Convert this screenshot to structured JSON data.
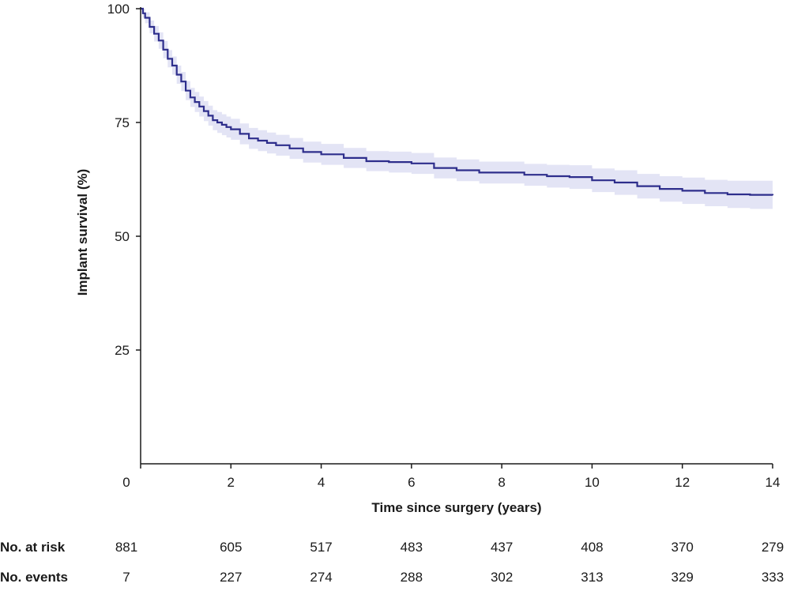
{
  "chart_data": {
    "type": "line",
    "subtype": "kaplan-meier",
    "title": "",
    "xlabel": "Time since surgery (years)",
    "ylabel": "Implant survival (%)",
    "xlim": [
      0,
      14
    ],
    "ylim": [
      0,
      100
    ],
    "x_ticks": [
      0,
      2,
      4,
      6,
      8,
      10,
      12,
      14
    ],
    "y_ticks": [
      25,
      50,
      75,
      100
    ],
    "grid": false,
    "colors": {
      "line": "#2e2e8c",
      "ci_band": "#e3e4f5"
    },
    "series": [
      {
        "x": [
          0,
          0.05,
          0.1,
          0.2,
          0.3,
          0.4,
          0.5,
          0.6,
          0.7,
          0.8,
          0.9,
          1.0,
          1.1,
          1.2,
          1.3,
          1.4,
          1.5,
          1.6,
          1.7,
          1.8,
          1.9,
          2.0,
          2.2,
          2.4,
          2.6,
          2.8,
          3.0,
          3.3,
          3.6,
          4.0,
          4.5,
          5.0,
          5.5,
          6.0,
          6.5,
          7.0,
          7.5,
          8.0,
          8.5,
          9.0,
          9.5,
          10.0,
          10.5,
          11.0,
          11.5,
          12.0,
          12.5,
          13.0,
          13.5,
          14.0
        ],
        "y": [
          100,
          99,
          98,
          96,
          94.5,
          93,
          91,
          89,
          87.5,
          85.5,
          84,
          82,
          80.5,
          79.5,
          78.5,
          77.5,
          76.5,
          75.5,
          75,
          74.5,
          74,
          73.5,
          72.5,
          71.5,
          71,
          70.5,
          70,
          69.3,
          68.5,
          68,
          67.2,
          66.5,
          66.3,
          66,
          65,
          64.5,
          64,
          64,
          63.5,
          63.2,
          63,
          62.3,
          61.8,
          61,
          60.4,
          60,
          59.5,
          59.2,
          59.1,
          59
        ],
        "lower": [
          100,
          98,
          96.8,
          94.6,
          92.8,
          91.2,
          89.1,
          87.1,
          85.5,
          83.5,
          81.9,
          79.9,
          78.4,
          77.3,
          76.3,
          75.3,
          74.3,
          73.3,
          72.7,
          72.2,
          71.7,
          71.2,
          70.2,
          69.2,
          68.7,
          68.2,
          67.7,
          67,
          66.2,
          65.7,
          65,
          64.3,
          64,
          63.7,
          62.7,
          62.1,
          61.6,
          61.6,
          61.1,
          60.7,
          60.4,
          59.7,
          59.1,
          58.3,
          57.6,
          57.1,
          56.6,
          56.2,
          56,
          55.8
        ],
        "upper": [
          100,
          100,
          99.2,
          97.4,
          96.2,
          94.8,
          92.9,
          90.9,
          89.5,
          87.5,
          86.1,
          84.1,
          82.6,
          81.7,
          80.7,
          79.7,
          78.7,
          77.7,
          77.3,
          76.8,
          76.3,
          75.8,
          74.8,
          73.8,
          73.3,
          72.8,
          72.3,
          71.6,
          70.8,
          70.3,
          69.4,
          68.7,
          68.6,
          68.3,
          67.3,
          66.9,
          66.4,
          66.4,
          65.9,
          65.7,
          65.6,
          64.9,
          64.5,
          63.7,
          63.2,
          62.9,
          62.4,
          62.2,
          62.2,
          62.2
        ]
      }
    ]
  },
  "risk_table": {
    "rows": [
      {
        "label": "No. at risk",
        "values": [
          881,
          605,
          517,
          483,
          437,
          408,
          370,
          279
        ]
      },
      {
        "label": "No. events",
        "values": [
          7,
          227,
          274,
          288,
          302,
          313,
          329,
          333
        ]
      }
    ]
  }
}
